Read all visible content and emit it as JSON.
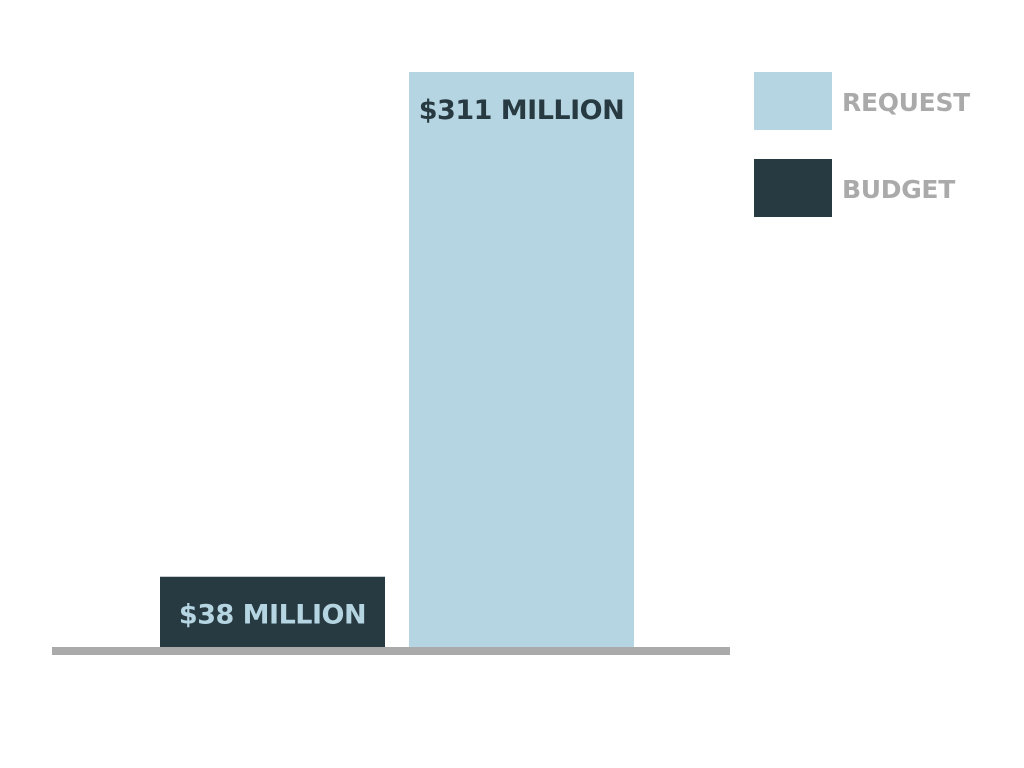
{
  "chart_data": {
    "type": "bar",
    "title": "",
    "xlabel": "",
    "ylabel": "",
    "ylim": [
      0,
      311
    ],
    "grid": false,
    "legend_position": "top-right",
    "categories": [
      "BUDGET",
      "REQUEST"
    ],
    "values": [
      38,
      311
    ],
    "units": "million USD",
    "data_labels": [
      "$38 MILLION",
      "$311 MILLION"
    ],
    "colors": [
      "#283a41",
      "#b6d5e2"
    ],
    "label_colors": [
      "#b6d5e2",
      "#283a41"
    ],
    "baseline_color": "#aaaaaa",
    "legend": [
      {
        "label": "REQUEST",
        "color": "#b6d5e2",
        "text_color": "#aaaaaa"
      },
      {
        "label": "BUDGET",
        "color": "#283a41",
        "text_color": "#aaaaaa"
      }
    ]
  }
}
